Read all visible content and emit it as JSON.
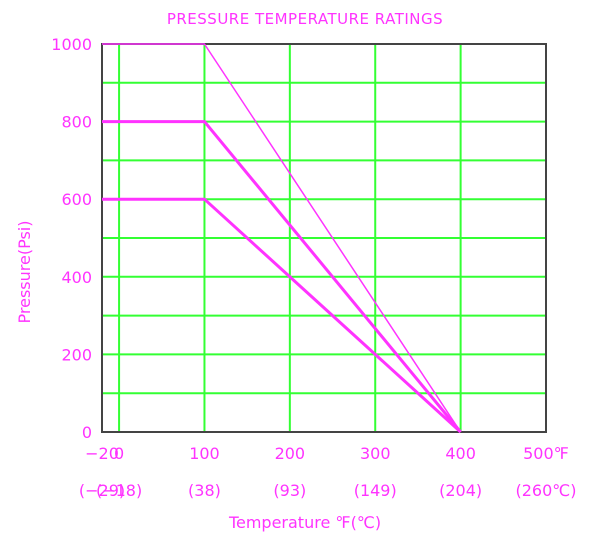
{
  "chart_data": {
    "type": "line",
    "title": "PRESSURE TEMPERATURE RATINGS",
    "xlabel": "Temperature ℉(℃)",
    "ylabel": "Pressure(Psi)",
    "xlim": [
      -20,
      500
    ],
    "ylim": [
      0,
      1000
    ],
    "y_ticks": [
      {
        "value": 0,
        "label": "0"
      },
      {
        "value": 200,
        "label": "200"
      },
      {
        "value": 400,
        "label": "400"
      },
      {
        "value": 600,
        "label": "600"
      },
      {
        "value": 800,
        "label": "800"
      },
      {
        "value": 1000,
        "label": "1000"
      }
    ],
    "x_ticks_f": [
      {
        "value": -20,
        "label": "−20"
      },
      {
        "value": 0,
        "label": "0"
      },
      {
        "value": 100,
        "label": "100"
      },
      {
        "value": 200,
        "label": "200"
      },
      {
        "value": 300,
        "label": "300"
      },
      {
        "value": 400,
        "label": "400"
      },
      {
        "value": 500,
        "label": "500℉"
      }
    ],
    "x_ticks_c": [
      {
        "value": -20,
        "label": "(−29)"
      },
      {
        "value": 0,
        "label": "(−18)"
      },
      {
        "value": 100,
        "label": "(38)"
      },
      {
        "value": 200,
        "label": "(93)"
      },
      {
        "value": 300,
        "label": "(149)"
      },
      {
        "value": 400,
        "label": "(204)"
      },
      {
        "value": 500,
        "label": "(260℃)"
      }
    ],
    "grid": true,
    "series": [
      {
        "points": [
          [
            -20,
            1000
          ],
          [
            100,
            1000
          ],
          [
            400,
            0
          ]
        ]
      },
      {
        "points": [
          [
            -20,
            800
          ],
          [
            100,
            800
          ],
          [
            400,
            0
          ]
        ]
      },
      {
        "points": [
          [
            -20,
            600
          ],
          [
            100,
            600
          ],
          [
            400,
            0
          ]
        ]
      }
    ]
  },
  "colors": {
    "title": "#ff33ff",
    "axis_labels": "#ff33ff",
    "series": "#ff33ff",
    "grid": "#33ff33",
    "frame": "#444444"
  }
}
